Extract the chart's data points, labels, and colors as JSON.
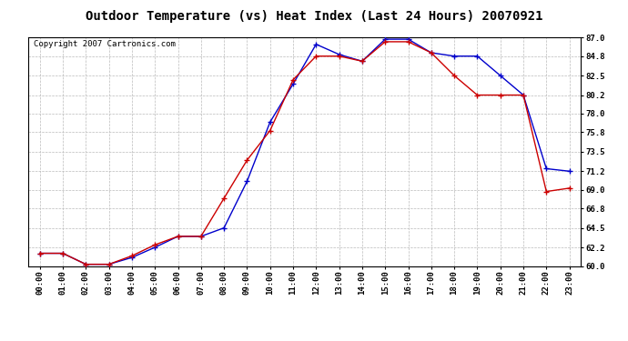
{
  "title": "Outdoor Temperature (vs) Heat Index (Last 24 Hours) 20070921",
  "copyright": "Copyright 2007 Cartronics.com",
  "x_labels": [
    "00:00",
    "01:00",
    "02:00",
    "03:00",
    "04:00",
    "05:00",
    "06:00",
    "07:00",
    "08:00",
    "09:00",
    "10:00",
    "11:00",
    "12:00",
    "13:00",
    "14:00",
    "15:00",
    "16:00",
    "17:00",
    "18:00",
    "19:00",
    "20:00",
    "21:00",
    "22:00",
    "23:00"
  ],
  "temp_data": [
    61.5,
    61.5,
    60.2,
    60.2,
    61.2,
    62.5,
    63.5,
    63.5,
    68.0,
    72.5,
    76.0,
    82.0,
    84.8,
    84.8,
    84.2,
    86.5,
    86.5,
    85.2,
    82.5,
    80.2,
    80.2,
    80.2,
    68.8,
    69.2
  ],
  "heat_index_data": [
    61.5,
    61.5,
    60.2,
    60.2,
    61.0,
    62.2,
    63.5,
    63.5,
    64.5,
    70.0,
    77.0,
    81.5,
    86.2,
    85.0,
    84.2,
    86.8,
    86.8,
    85.2,
    84.8,
    84.8,
    82.5,
    80.2,
    71.5,
    71.2
  ],
  "temp_color": "#cc0000",
  "heat_index_color": "#0000cc",
  "ylim_min": 60.0,
  "ylim_max": 87.0,
  "yticks": [
    60.0,
    62.2,
    64.5,
    66.8,
    69.0,
    71.2,
    73.5,
    75.8,
    78.0,
    80.2,
    82.5,
    84.8,
    87.0
  ],
  "bg_color": "#ffffff",
  "plot_bg_color": "#ffffff",
  "grid_color": "#bbbbbb",
  "title_fontsize": 10,
  "copyright_fontsize": 6.5,
  "tick_fontsize": 6.5
}
